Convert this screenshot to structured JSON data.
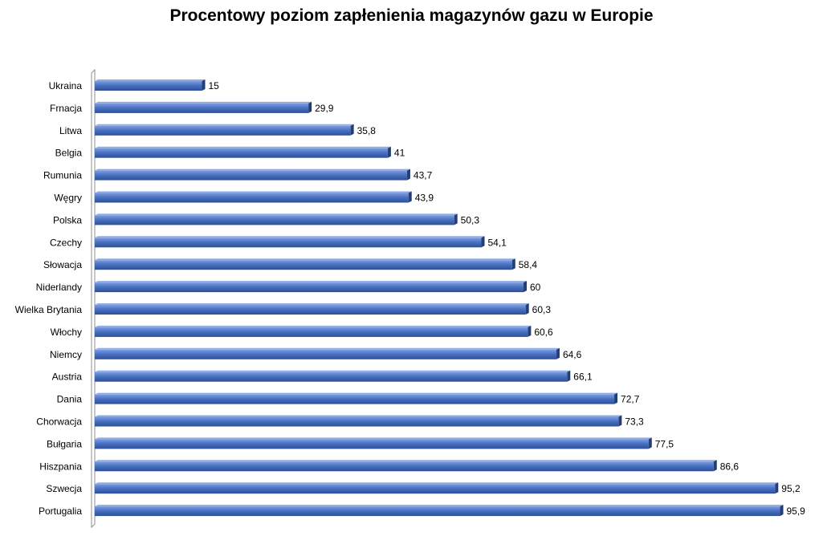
{
  "chart_data": {
    "type": "bar",
    "orientation": "horizontal",
    "title": "Procentowy poziom zapłenienia magazynów gazu w Europie",
    "categories": [
      "Ukraina",
      "Frnacja",
      "Litwa",
      "Belgia",
      "Rumunia",
      "Węgry",
      "Polska",
      "Czechy",
      "Słowacja",
      "Niderlandy",
      "Wielka Brytania",
      "Włochy",
      "Niemcy",
      "Austria",
      "Dania",
      "Chorwacja",
      "Bułgaria",
      "Hiszpania",
      "Szwecja",
      "Portugalia"
    ],
    "values": [
      15,
      29.9,
      35.8,
      41,
      43.7,
      43.9,
      50.3,
      54.1,
      58.4,
      60,
      60.3,
      60.6,
      64.6,
      66.1,
      72.7,
      73.3,
      77.5,
      86.6,
      95.2,
      95.9
    ],
    "data_labels": [
      "15",
      "29,9",
      "35,8",
      "41",
      "43,7",
      "43,9",
      "50,3",
      "54,1",
      "58,4",
      "60",
      "60,3",
      "60,6",
      "64,6",
      "66,1",
      "72,7",
      "73,3",
      "77,5",
      "86,6",
      "95,2",
      "95,9"
    ],
    "xlim": [
      0,
      100
    ],
    "grid": false,
    "legend": "none",
    "bar_color": "#4a72c2"
  }
}
